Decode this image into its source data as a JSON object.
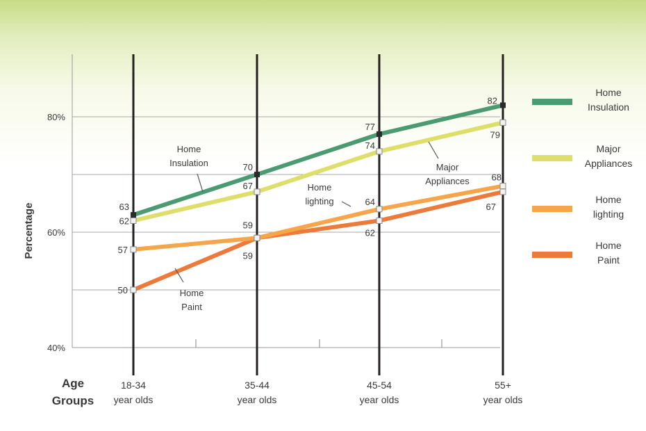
{
  "chart_data": {
    "type": "line",
    "ylabel": "Percentage",
    "x_axis_title": [
      "Age",
      "Groups"
    ],
    "categories": [
      [
        "18-34",
        "year olds"
      ],
      [
        "35-44",
        "year olds"
      ],
      [
        "45-54",
        "year olds"
      ],
      [
        "55+",
        "year olds"
      ]
    ],
    "y_ticks": [
      {
        "value": 40,
        "label": "40%"
      },
      {
        "value": 60,
        "label": "60%"
      },
      {
        "value": 80,
        "label": "80%"
      }
    ],
    "ylim": [
      40,
      90
    ],
    "grid": true,
    "legend_position": "right",
    "series": [
      {
        "name": [
          "Home",
          "Insulation"
        ],
        "color": "#4a9a72",
        "values": [
          63,
          70,
          77,
          82
        ],
        "inline_label": [
          "Home",
          "Insulation"
        ]
      },
      {
        "name": [
          "Major",
          "Appliances"
        ],
        "color": "#dede6a",
        "values": [
          62,
          67,
          74,
          79
        ],
        "inline_label": [
          "Major",
          "Appliances"
        ]
      },
      {
        "name": [
          "Home",
          "lighting"
        ],
        "color": "#f6a64a",
        "values": [
          57,
          59,
          64,
          68
        ],
        "inline_label": [
          "Home",
          "lighting"
        ]
      },
      {
        "name": [
          "Home",
          "Paint"
        ],
        "color": "#ec7a3a",
        "values": [
          50,
          59,
          62,
          67
        ],
        "inline_label": [
          "Home",
          "Paint"
        ]
      }
    ]
  }
}
